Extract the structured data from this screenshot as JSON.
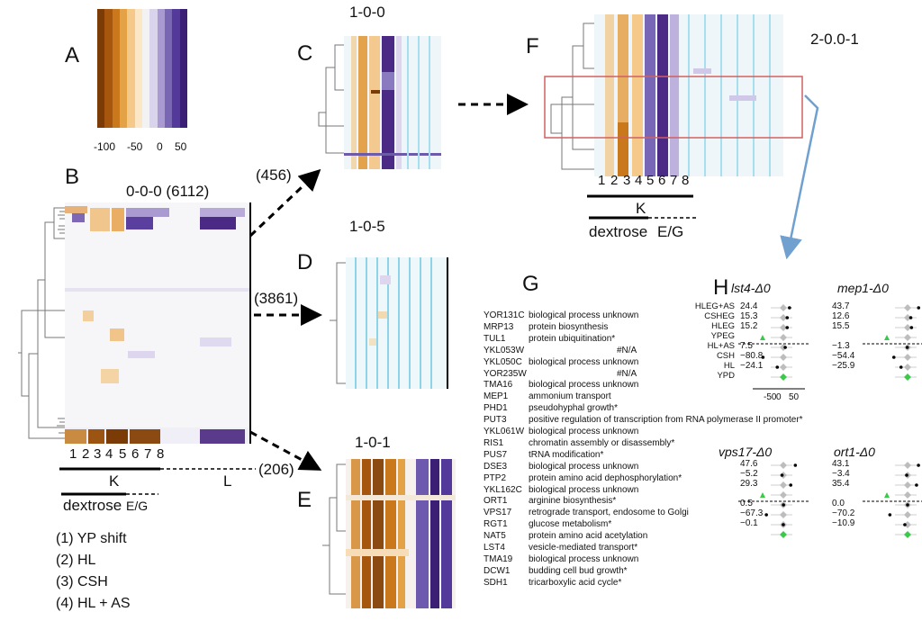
{
  "colors": {
    "scale": [
      "#7a3b06",
      "#a6560d",
      "#c9781b",
      "#e4a247",
      "#f4c98a",
      "#fbe7c6",
      "#f2f2f2",
      "#d9d3ec",
      "#a99bd1",
      "#7a67b4",
      "#53399a",
      "#3a1f74"
    ],
    "brown": "#8a4a12",
    "orange": "#e3a24c",
    "purple": "#4b2a86",
    "cyan": "#9fd9ea",
    "arrow_blue": "#6fa0d0",
    "box_red": "#d06060"
  },
  "panel_a": {
    "letter": "A",
    "ticks": [
      "-100",
      "-50",
      "0",
      "50"
    ]
  },
  "panel_b": {
    "letter": "B",
    "title": "0-0-0 (6112)",
    "columns": [
      "1",
      "2",
      "3",
      "4",
      "5",
      "6",
      "7",
      "8"
    ],
    "group_k": "K",
    "group_l": "L",
    "dextrose": "dextrose",
    "eg": "E/G",
    "legend": [
      "(1) YP shift",
      "(2) HL",
      "(3) CSH",
      "(4) HL + AS"
    ]
  },
  "panel_c": {
    "letter": "C",
    "title": "1-0-0",
    "count": "(456)"
  },
  "panel_d": {
    "letter": "D",
    "title": "1-0-5",
    "count": "(3861)"
  },
  "panel_e": {
    "letter": "E",
    "title": "1-0-1",
    "count": "(206)"
  },
  "panel_f": {
    "letter": "F",
    "title": "2-0.0-1",
    "columns": [
      "1",
      "2",
      "3",
      "4",
      "5",
      "6",
      "7",
      "8"
    ],
    "group_k": "K",
    "dextrose": "dextrose",
    "eg": "E/G"
  },
  "panel_g": {
    "letter": "G",
    "rows": [
      {
        "gene": "YOR131C",
        "desc": "biological process unknown",
        "extra": ""
      },
      {
        "gene": "MRP13",
        "desc": "protein biosynthesis",
        "extra": ""
      },
      {
        "gene": "TUL1",
        "desc": "protein ubiquitination*",
        "extra": ""
      },
      {
        "gene": "YKL053W",
        "desc": "",
        "extra": "#N/A"
      },
      {
        "gene": "YKL050C",
        "desc": "biological process unknown",
        "extra": ""
      },
      {
        "gene": "YOR235W",
        "desc": "",
        "extra": "#N/A"
      },
      {
        "gene": "TMA16",
        "desc": "biological process unknown",
        "extra": ""
      },
      {
        "gene": "MEP1",
        "desc": "ammonium transport",
        "extra": ""
      },
      {
        "gene": "PHD1",
        "desc": "pseudohyphal growth*",
        "extra": ""
      },
      {
        "gene": "PUT3",
        "desc": "positive regulation of transcription from RNA polymerase II promoter*",
        "extra": ""
      },
      {
        "gene": "YKL061W",
        "desc": "biological process unknown",
        "extra": ""
      },
      {
        "gene": "RIS1",
        "desc": "chromatin assembly or disassembly*",
        "extra": ""
      },
      {
        "gene": "PUS7",
        "desc": "tRNA modification*",
        "extra": ""
      },
      {
        "gene": "DSE3",
        "desc": "biological process unknown",
        "extra": ""
      },
      {
        "gene": "PTP2",
        "desc": "protein amino acid dephosphorylation*",
        "extra": ""
      },
      {
        "gene": "YKL162C",
        "desc": "biological process unknown",
        "extra": ""
      },
      {
        "gene": "ORT1",
        "desc": "arginine biosynthesis*",
        "extra": ""
      },
      {
        "gene": "VPS17",
        "desc": "retrograde transport, endosome to Golgi",
        "extra": ""
      },
      {
        "gene": "RGT1",
        "desc": "glucose metabolism*",
        "extra": ""
      },
      {
        "gene": "NAT5",
        "desc": "protein amino acid acetylation",
        "extra": ""
      },
      {
        "gene": "LST4",
        "desc": "vesicle-mediated transport*",
        "extra": ""
      },
      {
        "gene": "TMA19",
        "desc": "biological process unknown",
        "extra": ""
      },
      {
        "gene": "DCW1",
        "desc": "budding cell bud growth*",
        "extra": ""
      },
      {
        "gene": "SDH1",
        "desc": "tricarboxylic acid cycle*",
        "extra": ""
      }
    ]
  },
  "panel_h": {
    "letter": "H",
    "row_labels": [
      "HLEG+AS",
      "CSHEG",
      "HLEG",
      "YPEG",
      "HL+AS",
      "CSH",
      "HL",
      "YPD"
    ],
    "xticks": [
      "-50",
      "0",
      "50"
    ],
    "plots": [
      {
        "title": "lst4-Δ0",
        "values": [
          "24.4",
          "15.3",
          "15.2",
          "",
          "7.5",
          "−80.8",
          "−24.1",
          ""
        ]
      },
      {
        "title": "mep1-Δ0",
        "values": [
          "43.7",
          "12.6",
          "15.5",
          "",
          "−1.3",
          "−54.4",
          "−25.9",
          ""
        ]
      },
      {
        "title": "vps17-Δ0",
        "values": [
          "47.6",
          "−5.2",
          "29.3",
          "",
          "0.5",
          "−67.3",
          "−0.1",
          ""
        ]
      },
      {
        "title": "ort1-Δ0",
        "values": [
          "43.1",
          "−3.4",
          "35.4",
          "",
          "0.0",
          "−70.2",
          "−10.9",
          ""
        ]
      }
    ]
  }
}
